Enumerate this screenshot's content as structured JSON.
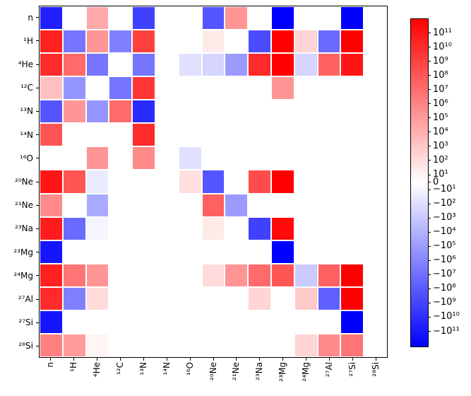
{
  "chart_data": {
    "type": "heatmap",
    "title": "",
    "xlabel": "",
    "ylabel": "",
    "grid_size": 15,
    "x_categories": [
      "n",
      "¹H",
      "⁴He",
      "¹²C",
      "¹³N",
      "¹⁴N",
      "¹⁶O",
      "²⁰Ne",
      "²¹Ne",
      "²³Na",
      "²³Mg",
      "²⁴Mg",
      "²⁷Al",
      "²⁷Si",
      "²⁸Si"
    ],
    "y_categories": [
      "n",
      "¹H",
      "⁴He",
      "¹²C",
      "¹³N",
      "¹⁴N",
      "¹⁶O",
      "²⁰Ne",
      "²¹Ne",
      "²³Na",
      "²³Mg",
      "²⁴Mg",
      "²⁷Al",
      "²⁷Si",
      "²⁸Si"
    ],
    "values": [
      [
        -30000000000.0,
        0,
        10000.0,
        0,
        -1000000000.0,
        0,
        0,
        -100000000.0,
        100000.0,
        0,
        -1000000000000.0,
        0,
        0,
        -1000000000000.0,
        0
      ],
      [
        30000000000.0,
        -3000000.0,
        100000.0,
        -1000000.0,
        1000000000.0,
        0,
        0,
        10.0,
        0,
        -300000000.0,
        1000000000000.0,
        100.0,
        -10000000.0,
        1000000000000.0,
        0
      ],
      [
        10000000000.0,
        10000000.0,
        -3000000.0,
        0,
        -3000000.0,
        0,
        -30.0,
        -100.0,
        -50000.0,
        10000000000.0,
        1000000000000.0,
        -100.0,
        30000000.0,
        100000000000.0,
        0
      ],
      [
        1000.0,
        -100000.0,
        0,
        -3000000.0,
        3000000000.0,
        0,
        0,
        0,
        0,
        0,
        100000.0,
        0,
        0,
        0,
        0
      ],
      [
        -100000000.0,
        100000.0,
        -100000.0,
        10000000.0,
        -10000000000.0,
        0,
        0,
        0,
        0,
        0,
        0,
        0,
        0,
        0,
        0
      ],
      [
        100000000.0,
        0,
        0,
        0,
        10000000000.0,
        0,
        0,
        0,
        0,
        0,
        0,
        0,
        0,
        0,
        0
      ],
      [
        0,
        0,
        100000.0,
        0,
        300000.0,
        0,
        -30.0,
        0,
        0,
        0,
        0,
        0,
        0,
        0,
        0
      ],
      [
        100000000000.0,
        100000000.0,
        -10.0,
        0,
        0,
        0,
        30.0,
        -100000000.0,
        0,
        300000000.0,
        1000000000000.0,
        0,
        0,
        0,
        0
      ],
      [
        300000.0,
        0,
        -10000.0,
        0,
        0,
        0,
        0,
        30000000.0,
        -50000.0,
        0,
        0,
        0,
        0,
        0,
        0
      ],
      [
        50000000000.0,
        -10000000.0,
        -3,
        0,
        0,
        0,
        0,
        10.0,
        0,
        -1000000000.0,
        300000000000.0,
        0,
        0,
        0,
        0
      ],
      [
        -100000000000.0,
        0,
        0,
        0,
        0,
        0,
        0,
        0,
        0,
        0,
        -1000000000000.0,
        0,
        0,
        0,
        0
      ],
      [
        30000000000.0,
        3000000.0,
        100000.0,
        0,
        0,
        0,
        0,
        50.0,
        100000.0,
        10000000.0,
        100000000.0,
        -300.0,
        30000000.0,
        1000000000000.0,
        0
      ],
      [
        10000000000.0,
        -1000000.0,
        50.0,
        0,
        0,
        0,
        0,
        0,
        0,
        100.0,
        0,
        300.0,
        -30000000.0,
        1000000000000.0,
        0
      ],
      [
        -100000000000.0,
        0,
        0,
        0,
        0,
        0,
        0,
        0,
        0,
        0,
        0,
        0,
        0,
        -1000000000000.0,
        0
      ],
      [
        1000000.0,
        50000.0,
        3,
        0,
        0,
        0,
        0,
        0,
        0,
        0,
        0,
        100.0,
        300000.0,
        3000000.0,
        0
      ]
    ],
    "value_scale": "symlog",
    "colormap": "bwr",
    "positive_color": "#ff0000",
    "negative_color": "#0000ff",
    "zero_color": "#ffffff",
    "legend_position": "right-colorbar",
    "grid": false,
    "colorbar": {
      "tick_labels_top_to_bottom": [
        "10¹¹",
        "10¹⁰",
        "10⁹",
        "10⁸",
        "10⁷",
        "10⁶",
        "10⁵",
        "10⁴",
        "10³",
        "10²",
        "10¹",
        "0",
        "−10¹",
        "−10²",
        "−10³",
        "−10⁴",
        "−10⁵",
        "−10⁶",
        "−10⁷",
        "−10⁸",
        "−10⁹",
        "−10¹⁰",
        "−10¹¹"
      ],
      "max_abs_exponent": 12
    }
  }
}
